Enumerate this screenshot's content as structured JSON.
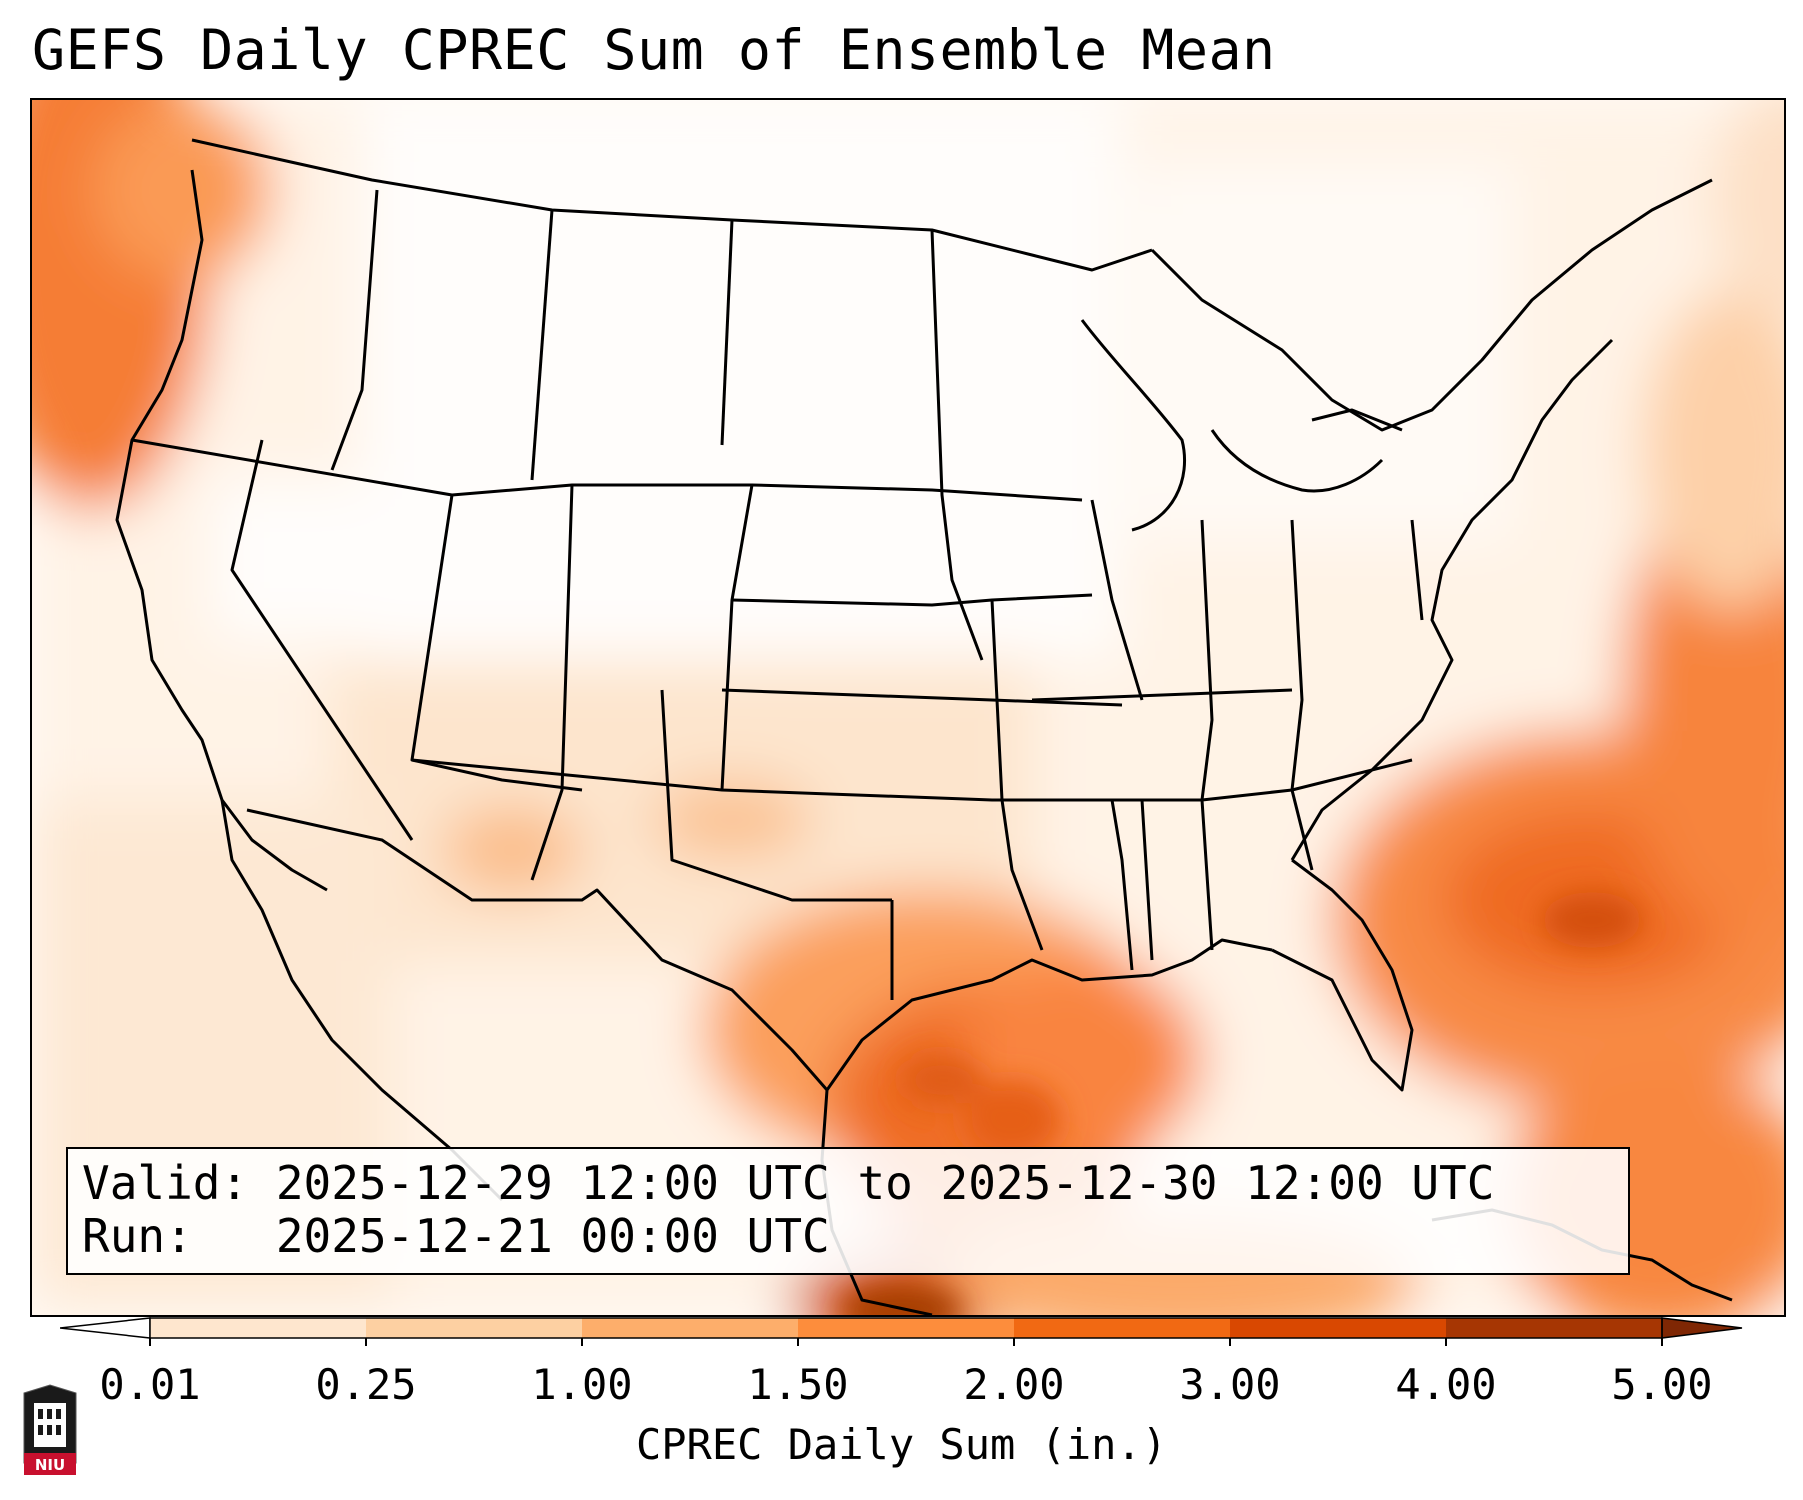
{
  "header": {
    "title": "GEFS Daily CPREC Sum of Ensemble Mean"
  },
  "info_box": {
    "valid_line": "Valid: 2025-12-29 12:00 UTC to 2025-12-30 12:00 UTC",
    "run_line": "Run:   2025-12-21 00:00 UTC"
  },
  "colorbar": {
    "label": "CPREC Daily Sum (in.)",
    "ticks": [
      "0.01",
      "0.25",
      "1.00",
      "1.50",
      "2.00",
      "3.00",
      "4.00",
      "5.00"
    ],
    "colors": [
      "#fff5eb",
      "#fee6ce",
      "#fdd0a2",
      "#fdae6b",
      "#fd8d3c",
      "#f16913",
      "#d94801",
      "#a63603",
      "#7f2704"
    ]
  },
  "logo": {
    "text": "NIU"
  },
  "map": {
    "projection": "lambert-conformal-conus",
    "heavy_precip_regions": [
      "Texas Gulf Coast / Louisiana",
      "Atlantic off Carolinas",
      "Pacific Northwest coast",
      "Western Caribbean"
    ]
  }
}
